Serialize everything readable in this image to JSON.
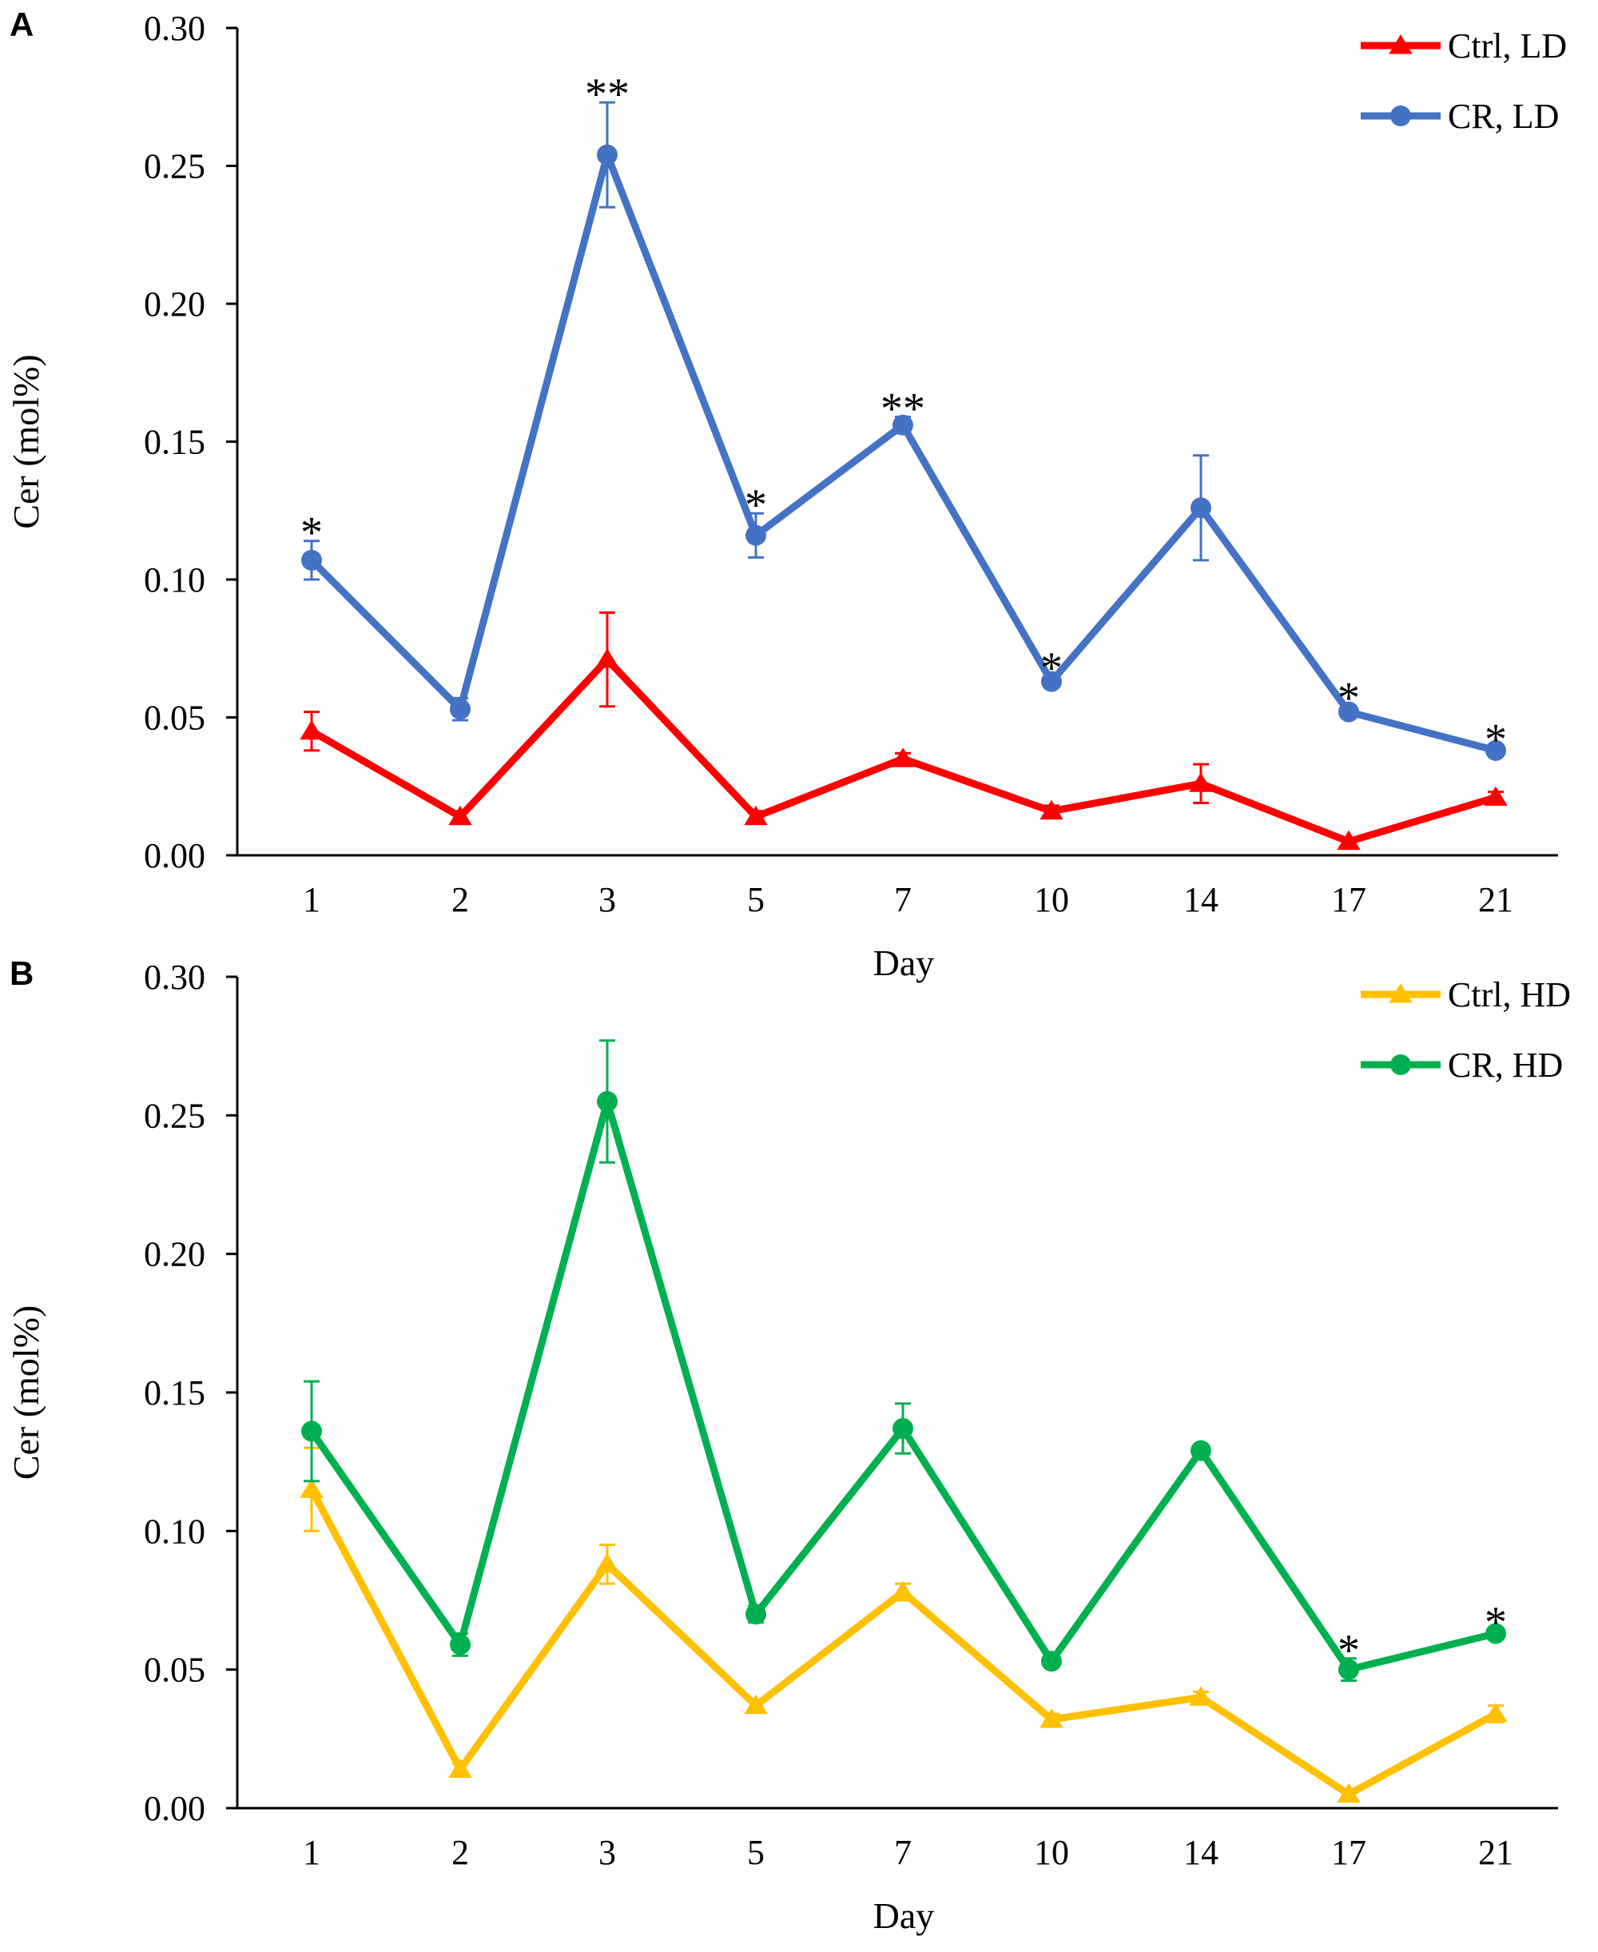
{
  "chart_data": [
    {
      "type": "line",
      "panel_label": "A",
      "categories": [
        "1",
        "2",
        "3",
        "5",
        "7",
        "10",
        "14",
        "17",
        "21"
      ],
      "xlabel": "Day",
      "ylabel": "Cer (mol%)",
      "ylim": [
        0,
        0.3
      ],
      "yticks": [
        "0.00",
        "0.05",
        "0.10",
        "0.15",
        "0.20",
        "0.25",
        "0.30"
      ],
      "grid": false,
      "legend_position": "top-right",
      "series": [
        {
          "name": "Ctrl, LD",
          "color": "#ff0000",
          "marker": "triangle",
          "values": [
            0.045,
            0.014,
            0.071,
            0.014,
            0.035,
            0.016,
            0.026,
            0.005,
            0.021
          ],
          "errors": [
            0.007,
            0.002,
            0.017,
            0.002,
            0.002,
            0.002,
            0.007,
            0.001,
            0.002
          ]
        },
        {
          "name": "CR, LD",
          "color": "#4472c4",
          "marker": "circle",
          "values": [
            0.107,
            0.053,
            0.254,
            0.116,
            0.156,
            0.063,
            0.126,
            0.052,
            0.038
          ],
          "errors": [
            0.007,
            0.004,
            0.019,
            0.008,
            0.003,
            0.002,
            0.019,
            0.002,
            0.001
          ]
        }
      ],
      "significance": [
        "*",
        "",
        "**",
        "*",
        "**",
        "*",
        "",
        "*",
        "*"
      ]
    },
    {
      "type": "line",
      "panel_label": "B",
      "categories": [
        "1",
        "2",
        "3",
        "5",
        "7",
        "10",
        "14",
        "17",
        "21"
      ],
      "xlabel": "Day",
      "ylabel": "Cer (mol%)",
      "ylim": [
        0,
        0.3
      ],
      "yticks": [
        "0.00",
        "0.05",
        "0.10",
        "0.15",
        "0.20",
        "0.25",
        "0.30"
      ],
      "grid": false,
      "legend_position": "top-right",
      "series": [
        {
          "name": "Ctrl, HD",
          "color": "#ffc000",
          "marker": "triangle",
          "values": [
            0.115,
            0.014,
            0.088,
            0.037,
            0.078,
            0.032,
            0.04,
            0.005,
            0.034
          ],
          "errors": [
            0.015,
            0.002,
            0.007,
            0.002,
            0.003,
            0.002,
            0.002,
            0.001,
            0.003
          ]
        },
        {
          "name": "CR, HD",
          "color": "#00b050",
          "marker": "circle",
          "values": [
            0.136,
            0.059,
            0.255,
            0.07,
            0.137,
            0.053,
            0.129,
            0.05,
            0.063
          ],
          "errors": [
            0.018,
            0.004,
            0.022,
            0.003,
            0.009,
            0.002,
            0.002,
            0.004,
            0.001
          ]
        }
      ],
      "significance": [
        "",
        "",
        "",
        "",
        "",
        "",
        "",
        "*",
        "*"
      ]
    }
  ]
}
